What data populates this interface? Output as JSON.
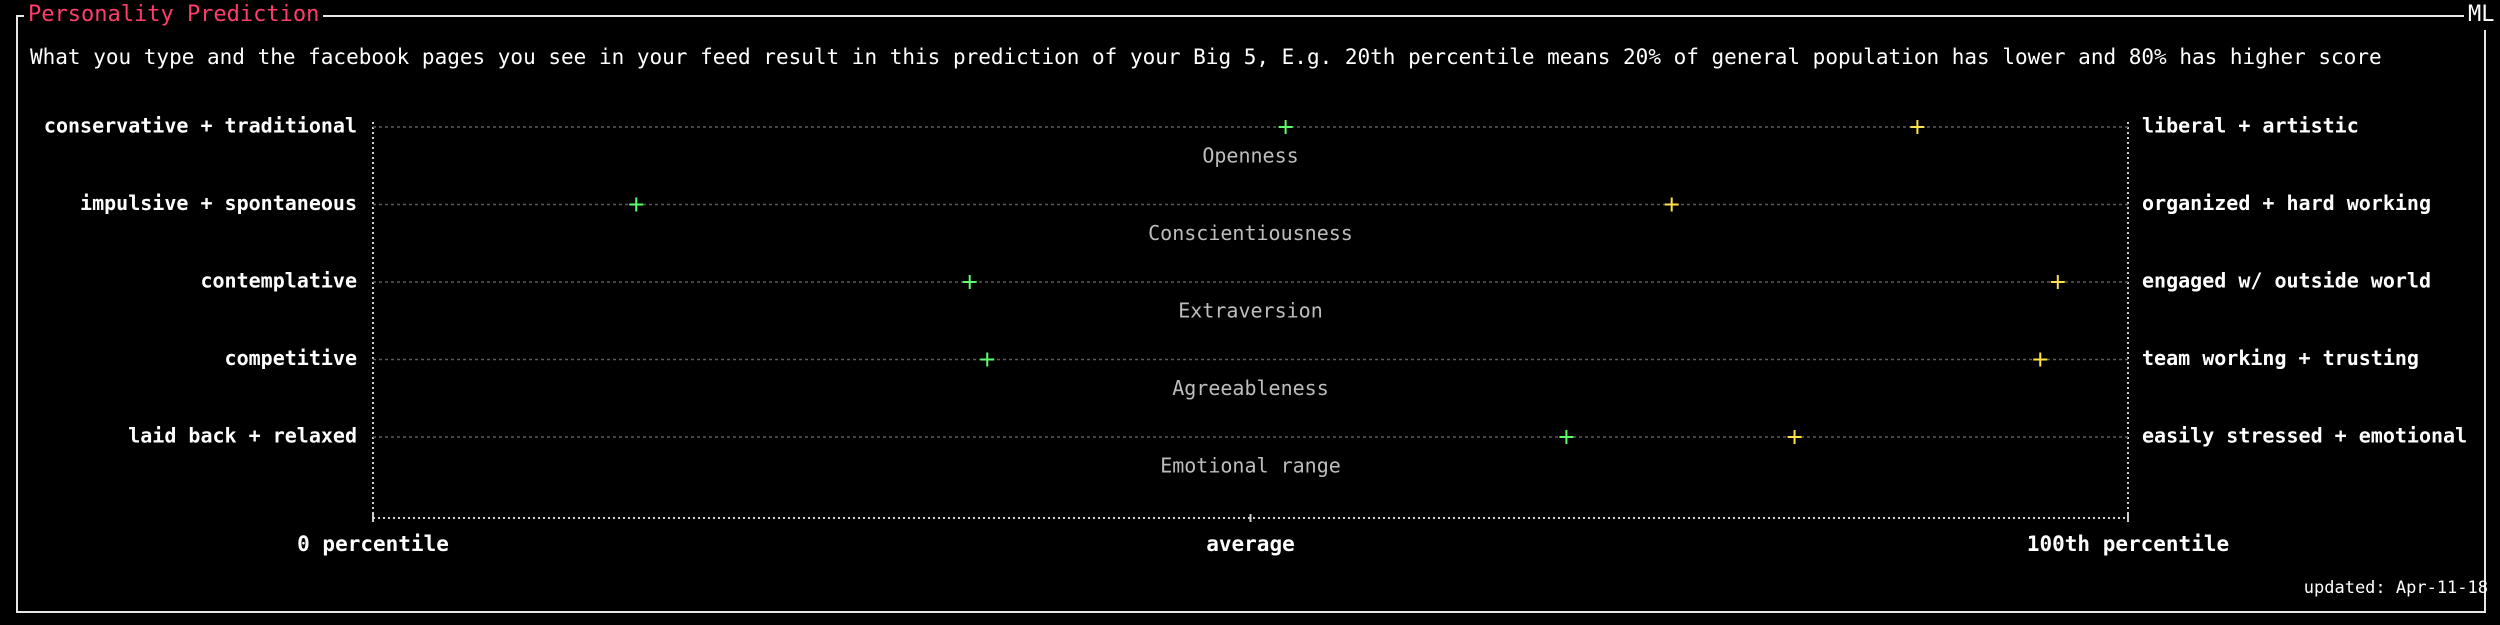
{
  "panel": {
    "title": "Personality Prediction",
    "badge": "ML",
    "description": "What you type and the facebook pages you see in your feed result in this prediction of your Big 5, E.g. 20th percentile means 20% of general population has lower and 80% has higher score",
    "updated": "updated: Apr-11-18"
  },
  "colors": {
    "title": "#ff3c6a",
    "series_green": "#5cff6a",
    "series_yellow": "#ffe24a",
    "axis": "#cfcfcf",
    "guide": "#5a5a5a",
    "trait_label": "#bdbdbd"
  },
  "chart_data": {
    "type": "scatter",
    "xlim": [
      0,
      100
    ],
    "x_ticks": [
      "0 percentile",
      "average",
      "100th percentile"
    ],
    "traits": [
      {
        "name": "Openness",
        "low": "conservative + traditional",
        "high": "liberal + artistic",
        "green": 52,
        "yellow": 88
      },
      {
        "name": "Conscientiousness",
        "low": "impulsive + spontaneous",
        "high": "organized + hard working",
        "green": 15,
        "yellow": 74
      },
      {
        "name": "Extraversion",
        "low": "contemplative",
        "high": "engaged w/ outside world",
        "green": 34,
        "yellow": 96
      },
      {
        "name": "Agreeableness",
        "low": "competitive",
        "high": "team working + trusting",
        "green": 35,
        "yellow": 95
      },
      {
        "name": "Emotional range",
        "low": "laid back + relaxed",
        "high": "easily stressed + emotional",
        "green": 68,
        "yellow": 81
      }
    ]
  }
}
